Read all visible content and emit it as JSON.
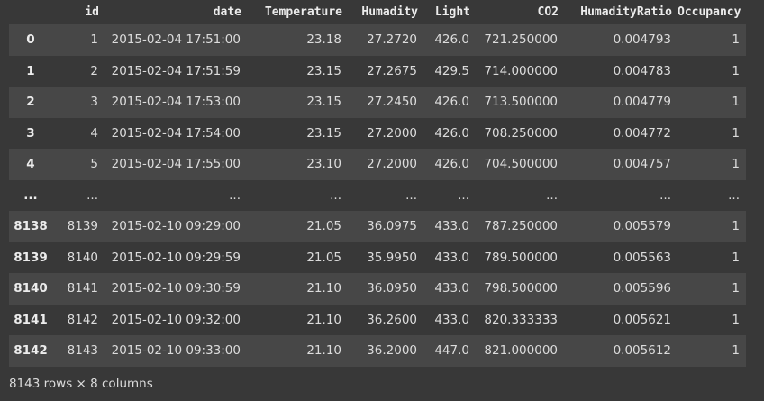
{
  "columns": [
    "",
    "id",
    "date",
    "Temperature",
    "Humadity",
    "Light",
    "CO2",
    "HumadityRatio",
    "Occupancy"
  ],
  "rows": [
    [
      "0",
      "1",
      "2015-02-04 17:51:00",
      "23.18",
      "27.2720",
      "426.0",
      "721.250000",
      "0.004793",
      "1"
    ],
    [
      "1",
      "2",
      "2015-02-04 17:51:59",
      "23.15",
      "27.2675",
      "429.5",
      "714.000000",
      "0.004783",
      "1"
    ],
    [
      "2",
      "3",
      "2015-02-04 17:53:00",
      "23.15",
      "27.2450",
      "426.0",
      "713.500000",
      "0.004779",
      "1"
    ],
    [
      "3",
      "4",
      "2015-02-04 17:54:00",
      "23.15",
      "27.2000",
      "426.0",
      "708.250000",
      "0.004772",
      "1"
    ],
    [
      "4",
      "5",
      "2015-02-04 17:55:00",
      "23.10",
      "27.2000",
      "426.0",
      "704.500000",
      "0.004757",
      "1"
    ],
    [
      "...",
      "...",
      "...",
      "...",
      "...",
      "...",
      "...",
      "...",
      "..."
    ],
    [
      "8138",
      "8139",
      "2015-02-10 09:29:00",
      "21.05",
      "36.0975",
      "433.0",
      "787.250000",
      "0.005579",
      "1"
    ],
    [
      "8139",
      "8140",
      "2015-02-10 09:29:59",
      "21.05",
      "35.9950",
      "433.0",
      "789.500000",
      "0.005563",
      "1"
    ],
    [
      "8140",
      "8141",
      "2015-02-10 09:30:59",
      "21.10",
      "36.0950",
      "433.0",
      "798.500000",
      "0.005596",
      "1"
    ],
    [
      "8141",
      "8142",
      "2015-02-10 09:32:00",
      "21.10",
      "36.2600",
      "433.0",
      "820.333333",
      "0.005621",
      "1"
    ],
    [
      "8142",
      "8143",
      "2015-02-10 09:33:00",
      "21.10",
      "36.2000",
      "447.0",
      "821.000000",
      "0.005612",
      "1"
    ]
  ],
  "footer": "8143 rows × 8 columns",
  "colors": {
    "background": "#383838",
    "row_stripe": "#474747",
    "text": "#dcdcdc"
  }
}
